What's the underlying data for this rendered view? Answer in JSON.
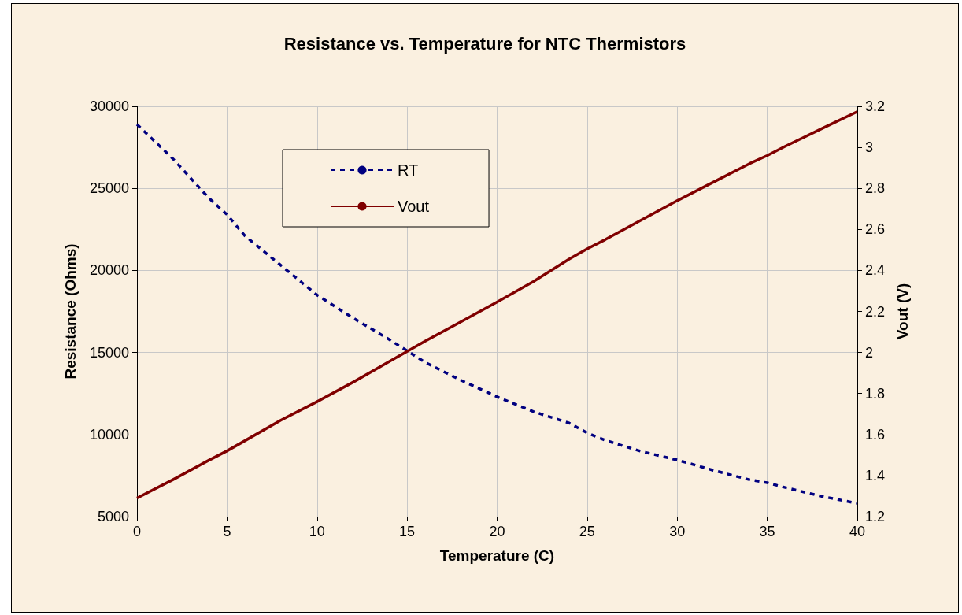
{
  "chart_data": {
    "type": "line",
    "title": "Resistance vs. Temperature for NTC Thermistors",
    "xlabel": "Temperature (C)",
    "ylabel": "Resistance (Ohms)",
    "y2label": "Vout (V)",
    "x": [
      0,
      2,
      4,
      5,
      6,
      8,
      10,
      12,
      14,
      15,
      16,
      18,
      20,
      22,
      24,
      25,
      26,
      28,
      30,
      32,
      34,
      35,
      36,
      38,
      40
    ],
    "series": [
      {
        "name": "RT",
        "color": "#000080",
        "line_style": "dashed",
        "values": [
          28900,
          26800,
          24400,
          23400,
          22100,
          20300,
          18500,
          17100,
          15800,
          15100,
          14400,
          13300,
          12300,
          11400,
          10700,
          10100,
          9650,
          8970,
          8450,
          7820,
          7250,
          7060,
          6770,
          6240,
          5810
        ]
      },
      {
        "name": "Vout",
        "color": "#800000",
        "line_style": "solid",
        "axis": "y2",
        "values": [
          1.29,
          1.38,
          1.475,
          1.52,
          1.57,
          1.67,
          1.76,
          1.855,
          1.955,
          2.005,
          2.055,
          2.15,
          2.246,
          2.345,
          2.455,
          2.505,
          2.55,
          2.645,
          2.74,
          2.83,
          2.92,
          2.96,
          3.005,
          3.09,
          3.174
        ]
      }
    ],
    "xlim": [
      0,
      40
    ],
    "xticks": [
      0,
      5,
      10,
      15,
      20,
      25,
      30,
      35,
      40
    ],
    "ylim": [
      5000,
      30000
    ],
    "yticks": [
      5000,
      10000,
      15000,
      20000,
      25000,
      30000
    ],
    "y2lim": [
      1.2,
      3.2
    ],
    "y2ticks": [
      1.2,
      1.4,
      1.6,
      1.8,
      2,
      2.2,
      2.4,
      2.6,
      2.8,
      3,
      3.2
    ],
    "grid": true,
    "legend": "top left",
    "marker": "none"
  }
}
